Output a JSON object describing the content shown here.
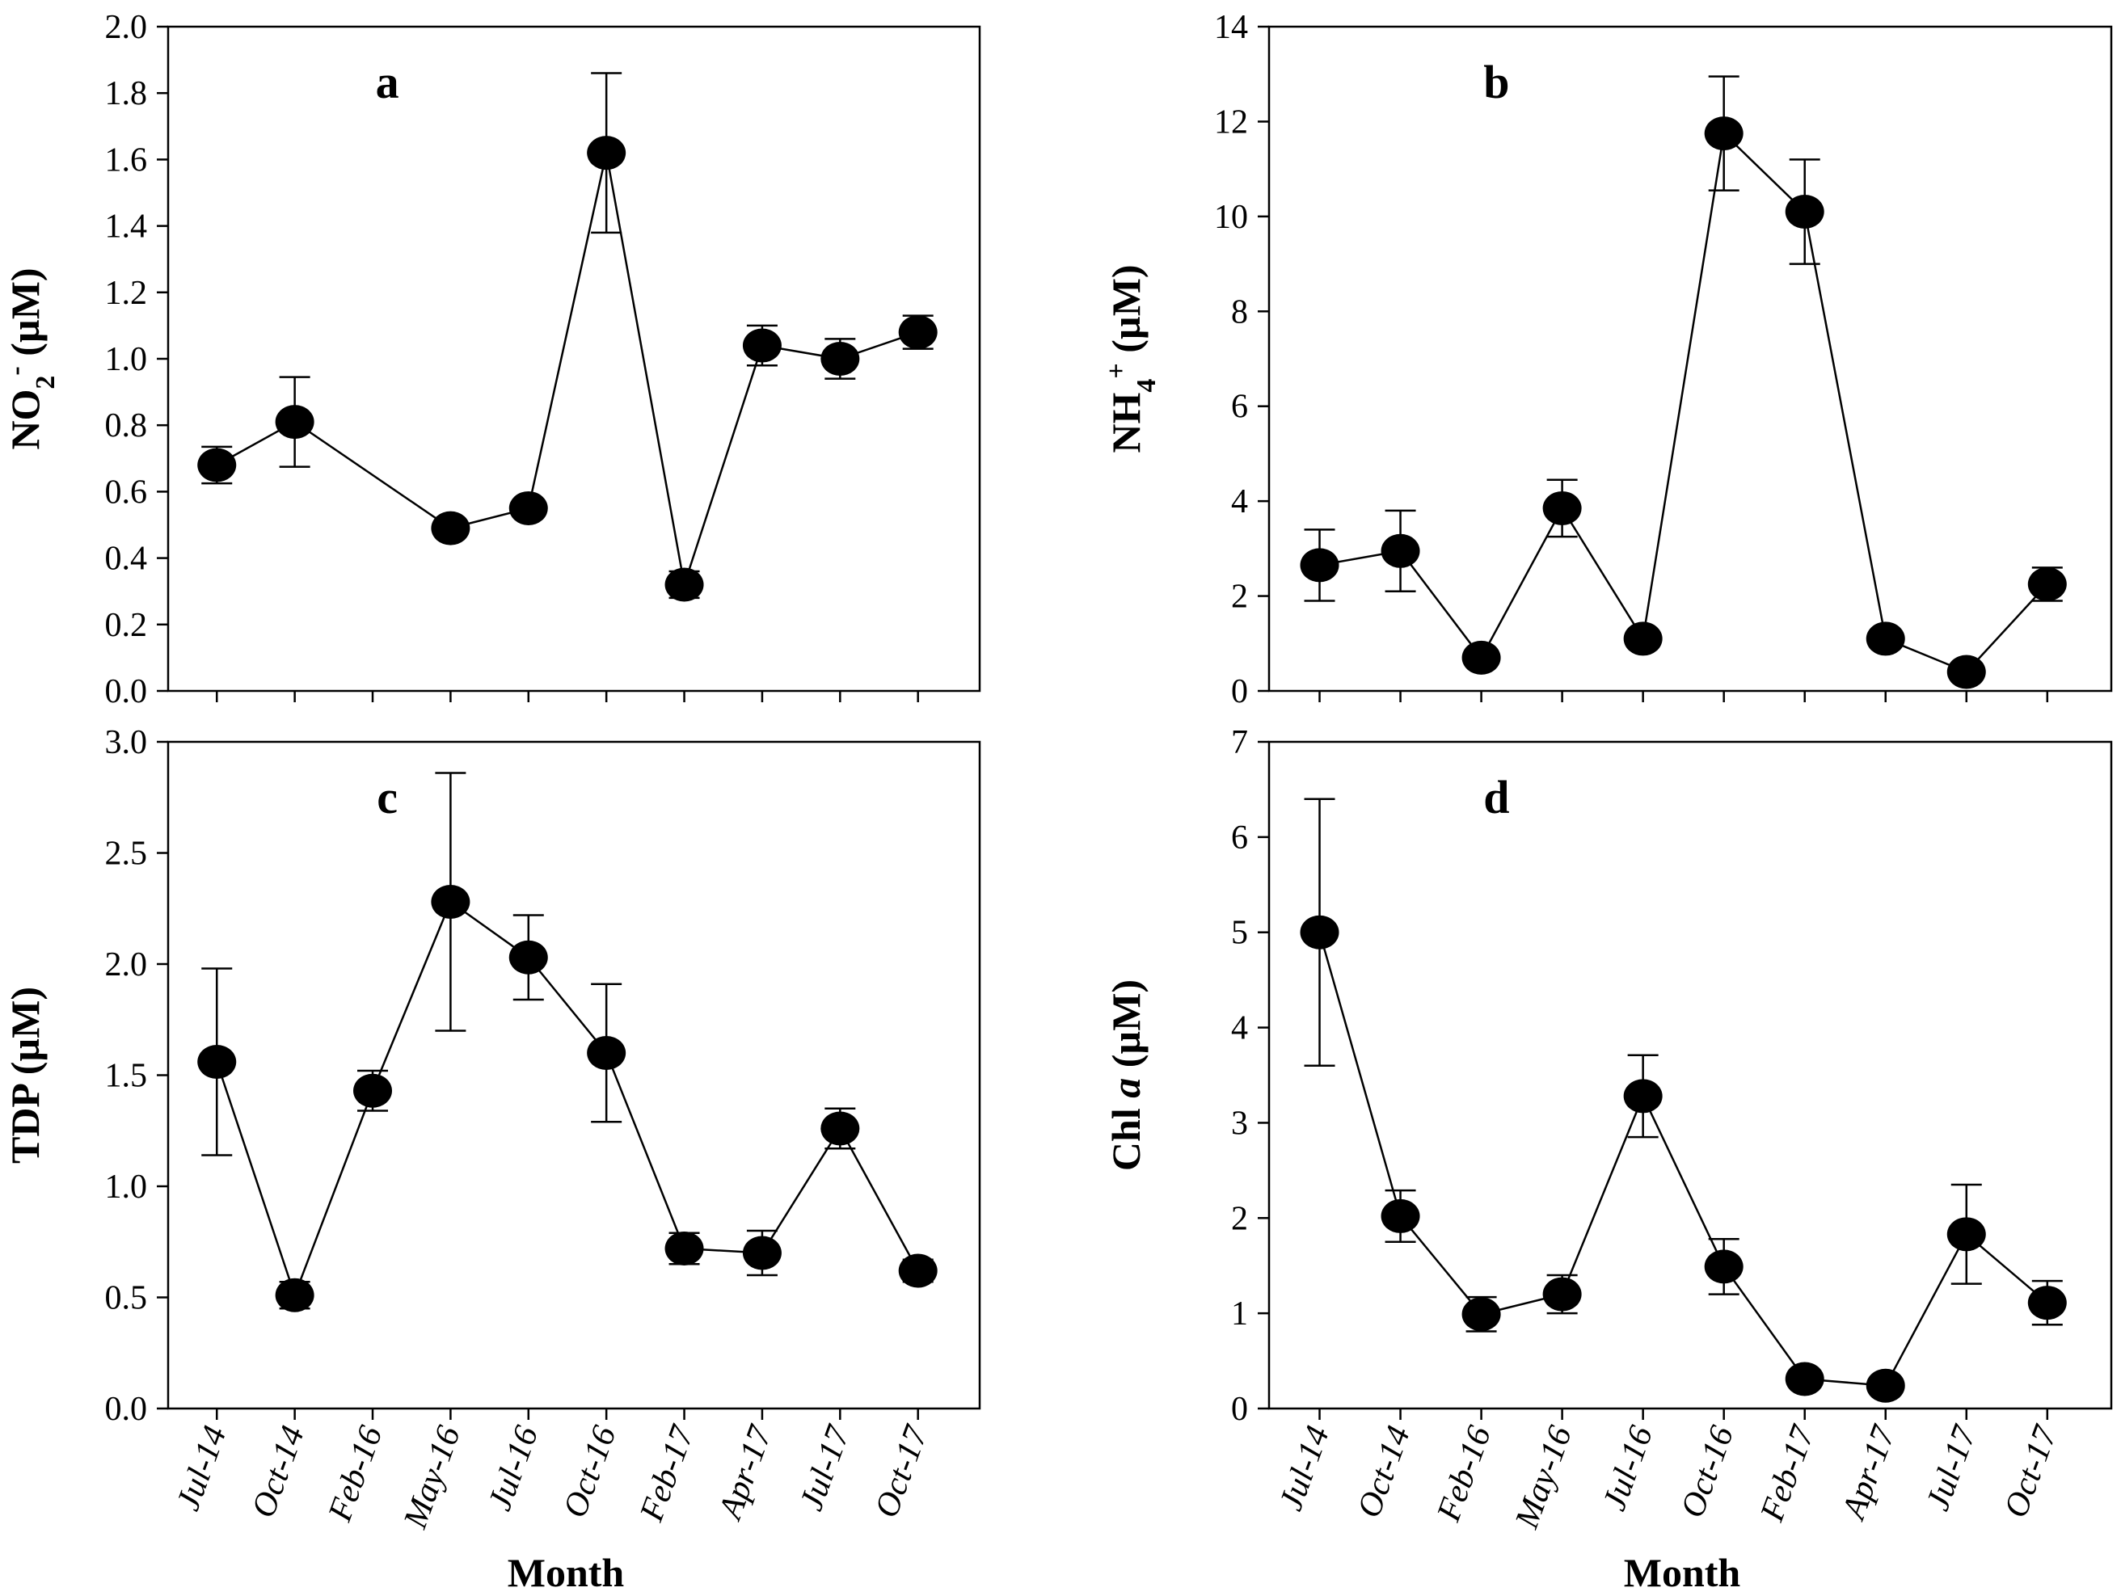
{
  "chart_data": [
    {
      "type": "line",
      "panel": "a",
      "ylabel_main": "NO",
      "ylabel_sub": "2",
      "ylabel_sup": "-",
      "ylabel_unit": " (µM)",
      "xlabel": "",
      "ylim": [
        0,
        2.0
      ],
      "yticks": [
        "0.0",
        "0.2",
        "0.4",
        "0.6",
        "0.8",
        "1.0",
        "1.2",
        "1.4",
        "1.6",
        "1.8",
        "2.0"
      ],
      "categories": [
        "Jul-14",
        "Oct-14",
        "Feb-16",
        "May-16",
        "Jul-16",
        "Oct-16",
        "Feb-17",
        "Apr-17",
        "Jul-17",
        "Oct-17"
      ],
      "points": [
        {
          "i": 0,
          "y": 0.68,
          "err": 0.055
        },
        {
          "i": 1,
          "y": 0.81,
          "err": 0.135
        },
        {
          "i": 3,
          "y": 0.49,
          "err": 0.0
        },
        {
          "i": 4,
          "y": 0.55,
          "err": 0.0
        },
        {
          "i": 5,
          "y": 1.62,
          "err": 0.24
        },
        {
          "i": 6,
          "y": 0.32,
          "err": 0.04
        },
        {
          "i": 7,
          "y": 1.04,
          "err": 0.06
        },
        {
          "i": 8,
          "y": 1.0,
          "err": 0.06
        },
        {
          "i": 9,
          "y": 1.08,
          "err": 0.05
        }
      ],
      "show_xticklabels": false
    },
    {
      "type": "line",
      "panel": "b",
      "ylabel_main": "NH",
      "ylabel_sub": "4",
      "ylabel_sup": "+",
      "ylabel_unit": " (µM)",
      "xlabel": "",
      "ylim": [
        0,
        14
      ],
      "yticks": [
        "0",
        "2",
        "4",
        "6",
        "8",
        "10",
        "12",
        "14"
      ],
      "categories": [
        "Jul-14",
        "Oct-14",
        "Feb-16",
        "May-16",
        "Jul-16",
        "Oct-16",
        "Feb-17",
        "Apr-17",
        "Jul-17",
        "Oct-17"
      ],
      "points": [
        {
          "i": 0,
          "y": 2.65,
          "err": 0.75
        },
        {
          "i": 1,
          "y": 2.95,
          "err": 0.85
        },
        {
          "i": 2,
          "y": 0.7,
          "err": 0.0
        },
        {
          "i": 3,
          "y": 3.85,
          "err": 0.6
        },
        {
          "i": 4,
          "y": 1.1,
          "err": 0.0
        },
        {
          "i": 5,
          "y": 11.75,
          "err": 1.2
        },
        {
          "i": 6,
          "y": 10.1,
          "err": 1.1
        },
        {
          "i": 7,
          "y": 1.1,
          "err": 0.0
        },
        {
          "i": 8,
          "y": 0.4,
          "err": 0.0
        },
        {
          "i": 9,
          "y": 2.25,
          "err": 0.35
        }
      ],
      "show_xticklabels": false
    },
    {
      "type": "line",
      "panel": "c",
      "ylabel_main": "TDP",
      "ylabel_sub": "",
      "ylabel_sup": "",
      "ylabel_unit": " (µM)",
      "xlabel": "Month",
      "ylim": [
        0,
        3.0
      ],
      "yticks": [
        "0.0",
        "0.5",
        "1.0",
        "1.5",
        "2.0",
        "2.5",
        "3.0"
      ],
      "categories": [
        "Jul-14",
        "Oct-14",
        "Feb-16",
        "May-16",
        "Jul-16",
        "Oct-16",
        "Feb-17",
        "Apr-17",
        "Jul-17",
        "Oct-17"
      ],
      "points": [
        {
          "i": 0,
          "y": 1.56,
          "err": 0.42
        },
        {
          "i": 1,
          "y": 0.51,
          "err": 0.06
        },
        {
          "i": 2,
          "y": 1.43,
          "err": 0.09
        },
        {
          "i": 3,
          "y": 2.28,
          "err": 0.58
        },
        {
          "i": 4,
          "y": 2.03,
          "err": 0.19
        },
        {
          "i": 5,
          "y": 1.6,
          "err": 0.31
        },
        {
          "i": 6,
          "y": 0.72,
          "err": 0.07
        },
        {
          "i": 7,
          "y": 0.7,
          "err": 0.1
        },
        {
          "i": 8,
          "y": 1.26,
          "err": 0.09
        },
        {
          "i": 9,
          "y": 0.62,
          "err": 0.05
        }
      ],
      "show_xticklabels": true
    },
    {
      "type": "line",
      "panel": "d",
      "ylabel_main": "Chl ",
      "ylabel_italic": "a",
      "ylabel_sub": "",
      "ylabel_sup": "",
      "ylabel_unit": " (µM)",
      "xlabel": "Month",
      "ylim": [
        0,
        7
      ],
      "yticks": [
        "0",
        "1",
        "2",
        "3",
        "4",
        "5",
        "6",
        "7"
      ],
      "categories": [
        "Jul-14",
        "Oct-14",
        "Feb-16",
        "May-16",
        "Jul-16",
        "Oct-16",
        "Feb-17",
        "Apr-17",
        "Jul-17",
        "Oct-17"
      ],
      "points": [
        {
          "i": 0,
          "y": 5.0,
          "err": 1.4
        },
        {
          "i": 1,
          "y": 2.02,
          "err": 0.27
        },
        {
          "i": 2,
          "y": 0.99,
          "err": 0.18
        },
        {
          "i": 3,
          "y": 1.2,
          "err": 0.2
        },
        {
          "i": 4,
          "y": 3.28,
          "err": 0.43
        },
        {
          "i": 5,
          "y": 1.49,
          "err": 0.29
        },
        {
          "i": 6,
          "y": 0.31,
          "err": 0.0
        },
        {
          "i": 7,
          "y": 0.24,
          "err": 0.0
        },
        {
          "i": 8,
          "y": 1.83,
          "err": 0.52
        },
        {
          "i": 9,
          "y": 1.11,
          "err": 0.23
        }
      ],
      "show_xticklabels": true
    }
  ]
}
